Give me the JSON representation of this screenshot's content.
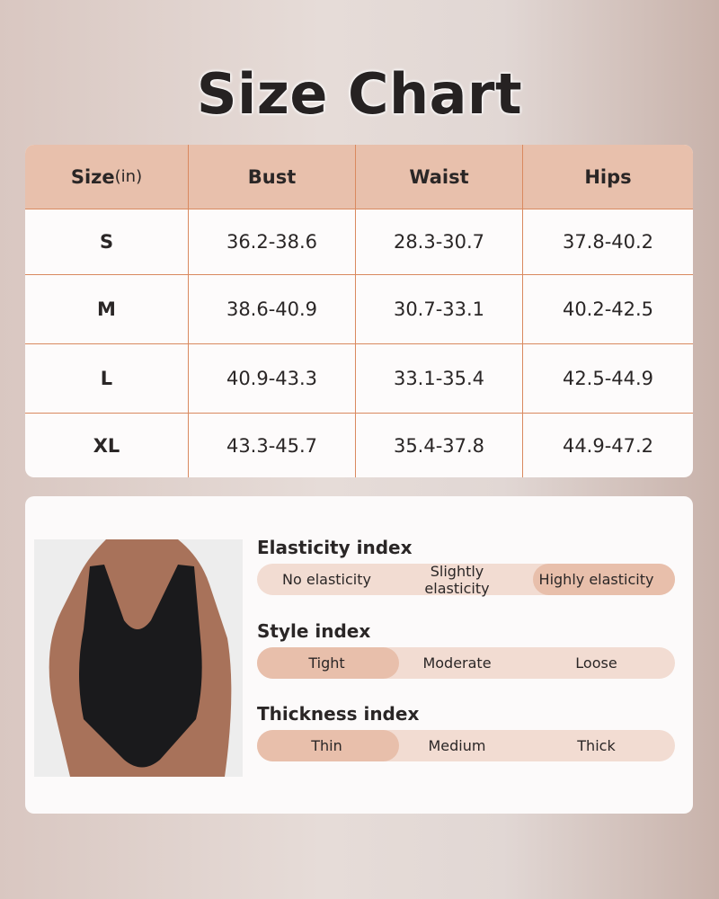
{
  "title": "Size Chart",
  "table": {
    "headers": {
      "size": "Size",
      "unit": "(in)",
      "bust": "Bust",
      "waist": "Waist",
      "hips": "Hips"
    },
    "rows": [
      {
        "size": "S",
        "bust": "36.2-38.6",
        "waist": "28.3-30.7",
        "hips": "37.8-40.2"
      },
      {
        "size": "M",
        "bust": "38.6-40.9",
        "waist": "30.7-33.1",
        "hips": "40.2-42.5"
      },
      {
        "size": "L",
        "bust": "40.9-43.3",
        "waist": "33.1-35.4",
        "hips": "42.5-44.9"
      },
      {
        "size": "XL",
        "bust": "43.3-45.7",
        "waist": "35.4-37.8",
        "hips": "44.9-47.2"
      }
    ]
  },
  "indices": [
    {
      "label": "Elasticity index",
      "options": [
        "No elasticity",
        "Slightly elasticity",
        "Highly elasticity"
      ],
      "selected": "Highly elasticity"
    },
    {
      "label": "Style index",
      "options": [
        "Tight",
        "Moderate",
        "Loose"
      ],
      "selected": "Tight"
    },
    {
      "label": "Thickness index",
      "options": [
        "Thin",
        "Medium",
        "Thick"
      ],
      "selected": "Thin"
    }
  ],
  "colors": {
    "header": "#e8c0ac",
    "divider": "#d9895f",
    "pill": "#f2dcd2",
    "pill_selected": "#e8bfab"
  }
}
